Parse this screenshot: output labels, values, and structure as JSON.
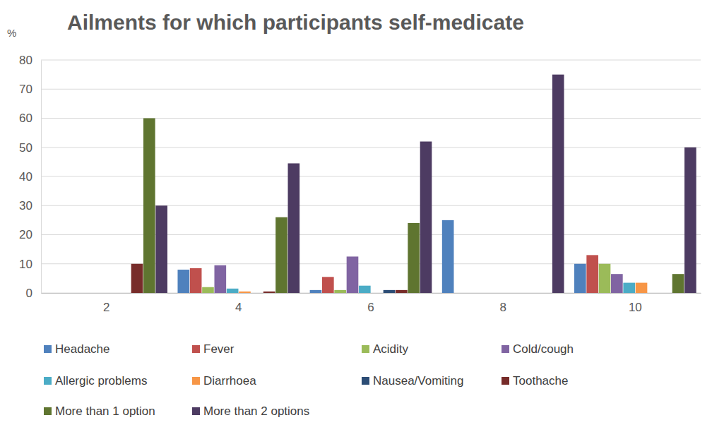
{
  "chart_data": {
    "type": "bar",
    "title": "Ailments for which participants self-medicate",
    "y_label": "%",
    "categories": [
      "2",
      "4",
      "6",
      "8",
      "10"
    ],
    "series": [
      {
        "name": "Headache",
        "color": "#4f81bd",
        "values": [
          0,
          8,
          1,
          25,
          10
        ]
      },
      {
        "name": "Fever",
        "color": "#c0504d",
        "values": [
          0,
          8.5,
          5.5,
          0,
          13
        ]
      },
      {
        "name": "Acidity",
        "color": "#9bbb59",
        "values": [
          0,
          2,
          1,
          0,
          10
        ]
      },
      {
        "name": "Cold/cough",
        "color": "#8064a2",
        "values": [
          0,
          9.5,
          12.5,
          0,
          6.5
        ]
      },
      {
        "name": "Allergic problems",
        "color": "#4bacc6",
        "values": [
          0,
          1.5,
          2.5,
          0,
          3.5
        ]
      },
      {
        "name": "Diarrhoea",
        "color": "#f79646",
        "values": [
          0,
          0.5,
          0,
          0,
          3.5
        ]
      },
      {
        "name": "Nausea/Vomiting",
        "color": "#2c4d75",
        "values": [
          0,
          0,
          1,
          0,
          0
        ]
      },
      {
        "name": "Toothache",
        "color": "#772c2a",
        "values": [
          10,
          0.5,
          1,
          0,
          0
        ]
      },
      {
        "name": "More than 1 option",
        "color": "#5f7530",
        "values": [
          60,
          26,
          24,
          0,
          6.5
        ]
      },
      {
        "name": "More than 2 options",
        "color": "#4d3b62",
        "values": [
          30,
          44.5,
          52,
          75,
          50
        ]
      }
    ],
    "ylim": [
      0,
      80
    ],
    "yticks": [
      0,
      10,
      20,
      30,
      40,
      50,
      60,
      70,
      80
    ],
    "grid": true,
    "legend": "bottom"
  }
}
